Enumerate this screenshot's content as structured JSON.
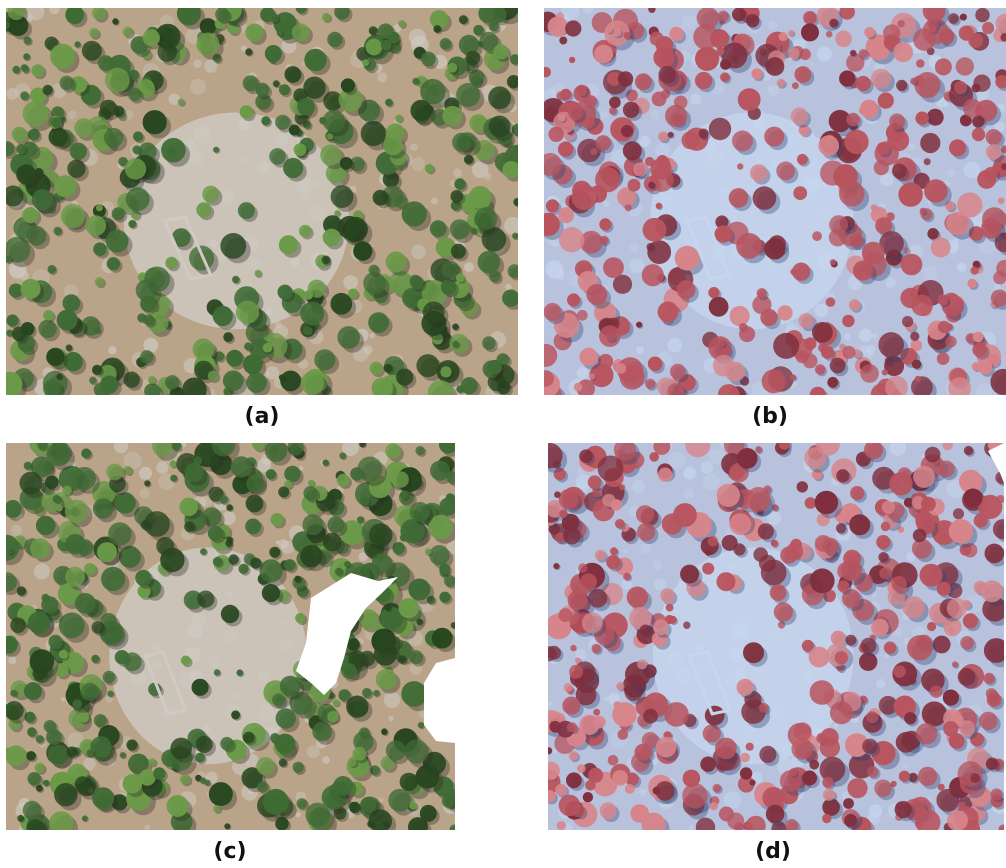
{
  "figure": {
    "panels": [
      {
        "id": "a",
        "caption": "(a)",
        "kind": "rgb-aerial-image",
        "colors": {
          "ground": "#b9a489",
          "rock": "#cfcbc4",
          "vegetation": "#3f6b35"
        }
      },
      {
        "id": "b",
        "caption": "(b)",
        "kind": "false-color-infrared-aerial-image",
        "colors": {
          "ground": "#b8c2dc",
          "rock": "#c6d6ee",
          "vegetation": "#b8545e"
        }
      },
      {
        "id": "c",
        "caption": "(c)",
        "kind": "rgb-aerial-image-with-masked-gap",
        "colors": {
          "ground": "#b9a489",
          "rock": "#cfcbc4",
          "vegetation": "#3f6b35",
          "mask": "#ffffff"
        }
      },
      {
        "id": "d",
        "caption": "(d)",
        "kind": "false-color-infrared-aerial-image",
        "colors": {
          "ground": "#b8c2dc",
          "rock": "#c6d6ee",
          "vegetation": "#b8545e"
        }
      }
    ]
  }
}
